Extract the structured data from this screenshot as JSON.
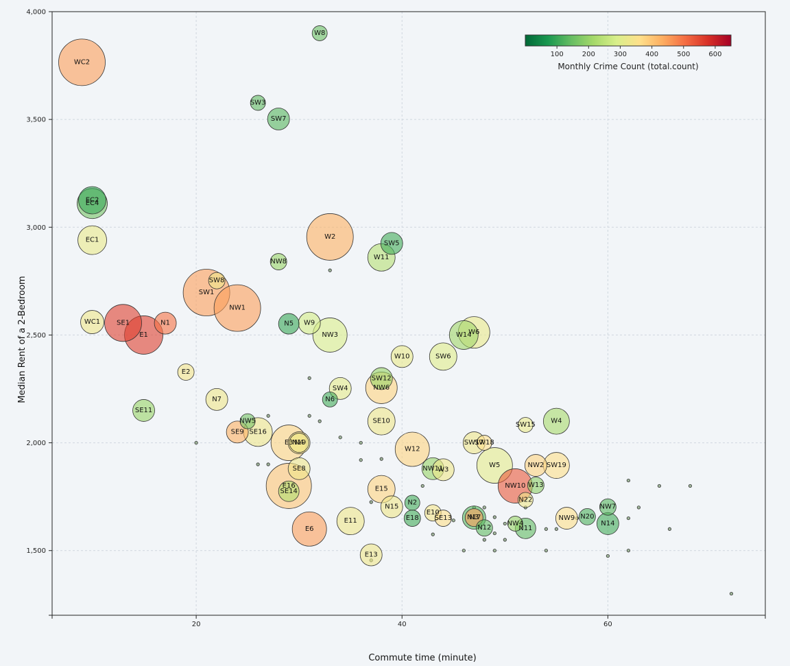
{
  "chart_data": {
    "type": "scatter",
    "xlabel": "Commute time (minute)",
    "ylabel": "Median Rent of a 2-Bedroom",
    "xlim": [
      6,
      75.3
    ],
    "ylim": [
      1200,
      4000
    ],
    "x_ticks": [
      20,
      40,
      60
    ],
    "y_ticks": [
      1500,
      2000,
      2500,
      3000,
      3500,
      4000
    ],
    "x_tick_labels": [
      "20",
      "40",
      "60"
    ],
    "y_tick_labels": [
      "1,500",
      "2,000",
      "2,500",
      "3,000",
      "3,500",
      "4,000"
    ],
    "grid": true,
    "colorbar": {
      "title": "Monthly Crime Count (total.count)",
      "range": [
        0,
        650
      ],
      "ticks": [
        100,
        200,
        300,
        400,
        500,
        600
      ],
      "tick_labels": [
        "100",
        "200",
        "300",
        "400",
        "500",
        "600"
      ],
      "placement": "top-right",
      "colors": [
        "#006837",
        "#1a9850",
        "#66bd63",
        "#a6d96a",
        "#d9ef8b",
        "#fee08b",
        "#fdae61",
        "#f46d43",
        "#d73027",
        "#a50026"
      ]
    },
    "points": [
      {
        "label": "WC2",
        "x": 8.9,
        "y": 3765,
        "size": 34,
        "crime": 450
      },
      {
        "label": "W8",
        "x": 32,
        "y": 3900,
        "size": 11,
        "crime": 150
      },
      {
        "label": "SW3",
        "x": 26,
        "y": 3577,
        "size": 11,
        "crime": 140
      },
      {
        "label": "SW7",
        "x": 28,
        "y": 3502,
        "size": 16,
        "crime": 130
      },
      {
        "label": "EC2",
        "x": 9.9,
        "y": 3125,
        "size": 20,
        "crime": 100
      },
      {
        "label": "EC4",
        "x": 9.9,
        "y": 3110,
        "size": 22,
        "crime": 160
      },
      {
        "label": "EC1",
        "x": 9.9,
        "y": 2940,
        "size": 21,
        "crime": 320
      },
      {
        "label": "W2",
        "x": 33,
        "y": 2955,
        "size": 34,
        "crime": 430
      },
      {
        "label": "SW5",
        "x": 39,
        "y": 2925,
        "size": 16,
        "crime": 110
      },
      {
        "label": "W11",
        "x": 38,
        "y": 2860,
        "size": 20,
        "crime": 240
      },
      {
        "label": "NW8",
        "x": 28,
        "y": 2840,
        "size": 12,
        "crime": 200
      },
      {
        "label": "SW8",
        "x": 22,
        "y": 2752,
        "size": 12,
        "crime": 330
      },
      {
        "label": "SW1",
        "x": 21,
        "y": 2697,
        "size": 34,
        "crime": 450
      },
      {
        "label": "NW1",
        "x": 24,
        "y": 2625,
        "size": 34,
        "crime": 450
      },
      {
        "label": "WC1",
        "x": 9.9,
        "y": 2560,
        "size": 17,
        "crime": 330
      },
      {
        "label": "SE1",
        "x": 12.9,
        "y": 2556,
        "size": 27,
        "crime": 560
      },
      {
        "label": "E1",
        "x": 14.9,
        "y": 2500,
        "size": 28,
        "crime": 560
      },
      {
        "label": "N1",
        "x": 17,
        "y": 2555,
        "size": 16,
        "crime": 500
      },
      {
        "label": "N5",
        "x": 29,
        "y": 2552,
        "size": 15,
        "crime": 100
      },
      {
        "label": "W9",
        "x": 31,
        "y": 2555,
        "size": 16,
        "crime": 280
      },
      {
        "label": "NW3",
        "x": 33,
        "y": 2500,
        "size": 25,
        "crime": 290
      },
      {
        "label": "W14",
        "x": 46,
        "y": 2500,
        "size": 21,
        "crime": 210
      },
      {
        "label": "W6",
        "x": 47,
        "y": 2512,
        "size": 23,
        "crime": 320
      },
      {
        "label": "W10",
        "x": 40,
        "y": 2400,
        "size": 16,
        "crime": 320
      },
      {
        "label": "SW6",
        "x": 44,
        "y": 2400,
        "size": 20,
        "crime": 300
      },
      {
        "label": "E2",
        "x": 19,
        "y": 2328,
        "size": 12,
        "crime": 340
      },
      {
        "label": "SW12",
        "x": 38,
        "y": 2298,
        "size": 16,
        "crime": 200
      },
      {
        "label": "NW6",
        "x": 38,
        "y": 2255,
        "size": 23,
        "crime": 380
      },
      {
        "label": "SW4",
        "x": 34,
        "y": 2252,
        "size": 16,
        "crime": 310
      },
      {
        "label": "N6",
        "x": 33,
        "y": 2201,
        "size": 11,
        "crime": 110
      },
      {
        "label": "N7",
        "x": 22,
        "y": 2201,
        "size": 16,
        "crime": 330
      },
      {
        "label": "SE11",
        "x": 14.9,
        "y": 2150,
        "size": 16,
        "crime": 200
      },
      {
        "label": "NW5",
        "x": 25,
        "y": 2100,
        "size": 11,
        "crime": 160
      },
      {
        "label": "SE9",
        "x": 24,
        "y": 2050,
        "size": 16,
        "crime": 430
      },
      {
        "label": "SE16",
        "x": 26,
        "y": 2050,
        "size": 21,
        "crime": 330
      },
      {
        "label": "SE10",
        "x": 38,
        "y": 2100,
        "size": 20,
        "crime": 330
      },
      {
        "label": "W4",
        "x": 55,
        "y": 2100,
        "size": 19,
        "crime": 220
      },
      {
        "label": "SW15",
        "x": 52,
        "y": 2083,
        "size": 11,
        "crime": 320
      },
      {
        "label": "E3",
        "x": 29,
        "y": 2000,
        "size": 26,
        "crime": 380
      },
      {
        "label": "N4",
        "x": 30,
        "y": 2000,
        "size": 16,
        "crime": 340
      },
      {
        "label": "N19",
        "x": 30,
        "y": 2000,
        "size": 14,
        "crime": 330
      },
      {
        "label": "W12",
        "x": 41,
        "y": 1970,
        "size": 25,
        "crime": 380
      },
      {
        "label": "SW17",
        "x": 47,
        "y": 2000,
        "size": 16,
        "crime": 330
      },
      {
        "label": "SW18",
        "x": 48,
        "y": 2000,
        "size": 11,
        "crime": 360
      },
      {
        "label": "W5",
        "x": 49,
        "y": 1895,
        "size": 26,
        "crime": 310
      },
      {
        "label": "NW2",
        "x": 53,
        "y": 1895,
        "size": 16,
        "crime": 380
      },
      {
        "label": "SW19",
        "x": 55,
        "y": 1895,
        "size": 19,
        "crime": 360
      },
      {
        "label": "NW11",
        "x": 43,
        "y": 1880,
        "size": 16,
        "crime": 200
      },
      {
        "label": "W3",
        "x": 44,
        "y": 1875,
        "size": 16,
        "crime": 330
      },
      {
        "label": "SE8",
        "x": 30,
        "y": 1880,
        "size": 16,
        "crime": 330
      },
      {
        "label": "NW10",
        "x": 51,
        "y": 1800,
        "size": 25,
        "crime": 530
      },
      {
        "label": "W13",
        "x": 53,
        "y": 1803,
        "size": 12,
        "crime": 190
      },
      {
        "label": "E16",
        "x": 29,
        "y": 1800,
        "size": 33,
        "crime": 400
      },
      {
        "label": "SE14",
        "x": 29,
        "y": 1775,
        "size": 15,
        "crime": 230
      },
      {
        "label": "E15",
        "x": 38,
        "y": 1785,
        "size": 20,
        "crime": 380
      },
      {
        "label": "N2",
        "x": 41,
        "y": 1722,
        "size": 11,
        "crime": 110
      },
      {
        "label": "N22",
        "x": 52,
        "y": 1735,
        "size": 11,
        "crime": 330
      },
      {
        "label": "N15",
        "x": 39,
        "y": 1703,
        "size": 16,
        "crime": 330
      },
      {
        "label": "NW7",
        "x": 60,
        "y": 1702,
        "size": 12,
        "crime": 130
      },
      {
        "label": "E10",
        "x": 43,
        "y": 1675,
        "size": 12,
        "crime": 340
      },
      {
        "label": "SE13",
        "x": 44,
        "y": 1650,
        "size": 12,
        "crime": 360
      },
      {
        "label": "N3",
        "x": 47,
        "y": 1653,
        "size": 17,
        "crime": 130
      },
      {
        "label": "N17",
        "x": 47,
        "y": 1653,
        "size": 13,
        "crime": 450
      },
      {
        "label": "E18",
        "x": 41,
        "y": 1650,
        "size": 12,
        "crime": 110
      },
      {
        "label": "NW9",
        "x": 56,
        "y": 1650,
        "size": 16,
        "crime": 360
      },
      {
        "label": "N20",
        "x": 58,
        "y": 1657,
        "size": 12,
        "crime": 120
      },
      {
        "label": "N14",
        "x": 60,
        "y": 1625,
        "size": 16,
        "crime": 110
      },
      {
        "label": "NW4",
        "x": 51,
        "y": 1625,
        "size": 11,
        "crime": 200
      },
      {
        "label": "E11",
        "x": 35,
        "y": 1637,
        "size": 20,
        "crime": 330
      },
      {
        "label": "N12",
        "x": 48,
        "y": 1605,
        "size": 12,
        "crime": 140
      },
      {
        "label": "N11",
        "x": 52,
        "y": 1603,
        "size": 15,
        "crime": 140
      },
      {
        "label": "E6",
        "x": 31,
        "y": 1600,
        "size": 25,
        "crime": 450
      },
      {
        "label": "E13",
        "x": 37,
        "y": 1480,
        "size": 16,
        "crime": 330
      }
    ],
    "minor_points": [
      {
        "x": 33,
        "y": 2800
      },
      {
        "x": 31,
        "y": 2300
      },
      {
        "x": 20,
        "y": 2000
      },
      {
        "x": 27,
        "y": 2125
      },
      {
        "x": 31,
        "y": 2125
      },
      {
        "x": 32,
        "y": 2100
      },
      {
        "x": 26,
        "y": 1900
      },
      {
        "x": 27,
        "y": 1900
      },
      {
        "x": 34,
        "y": 2025
      },
      {
        "x": 36,
        "y": 2000
      },
      {
        "x": 36,
        "y": 1920
      },
      {
        "x": 38,
        "y": 1925
      },
      {
        "x": 42,
        "y": 1800
      },
      {
        "x": 37,
        "y": 1725
      },
      {
        "x": 47,
        "y": 1700
      },
      {
        "x": 48,
        "y": 1700
      },
      {
        "x": 49,
        "y": 1655
      },
      {
        "x": 45,
        "y": 1640
      },
      {
        "x": 43,
        "y": 1575
      },
      {
        "x": 48,
        "y": 1550
      },
      {
        "x": 49,
        "y": 1580
      },
      {
        "x": 50,
        "y": 1550
      },
      {
        "x": 50,
        "y": 1625
      },
      {
        "x": 52,
        "y": 1700
      },
      {
        "x": 54,
        "y": 1600
      },
      {
        "x": 55,
        "y": 1600
      },
      {
        "x": 57,
        "y": 1650
      },
      {
        "x": 62,
        "y": 1825
      },
      {
        "x": 62,
        "y": 1650
      },
      {
        "x": 63,
        "y": 1700
      },
      {
        "x": 65,
        "y": 1800
      },
      {
        "x": 66,
        "y": 1600
      },
      {
        "x": 68,
        "y": 1800
      },
      {
        "x": 46,
        "y": 1500
      },
      {
        "x": 49,
        "y": 1500
      },
      {
        "x": 54,
        "y": 1500
      },
      {
        "x": 60,
        "y": 1475
      },
      {
        "x": 62,
        "y": 1500
      },
      {
        "x": 37,
        "y": 1455
      },
      {
        "x": 72,
        "y": 1300
      }
    ]
  }
}
